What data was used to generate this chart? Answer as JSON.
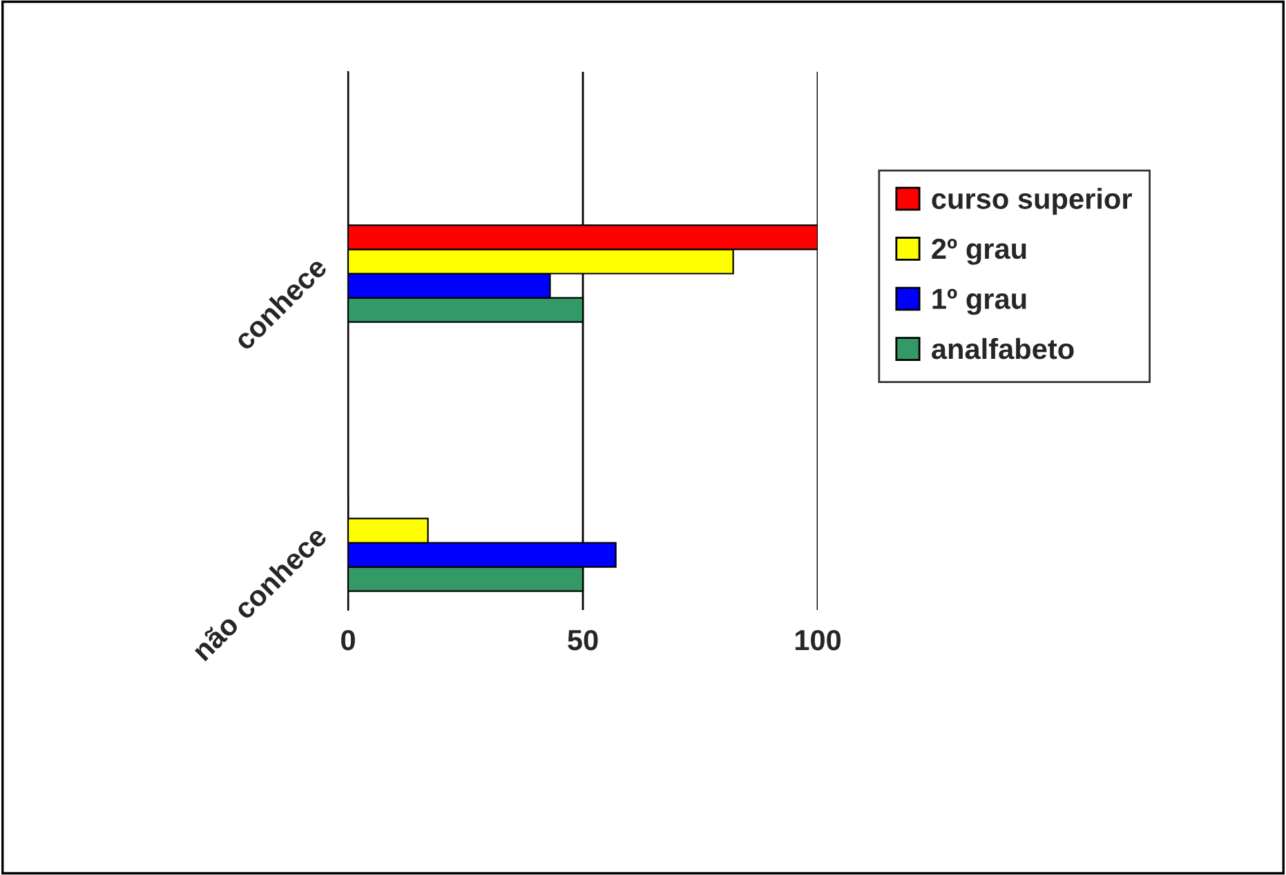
{
  "chart_data": {
    "type": "bar",
    "orientation": "horizontal",
    "categories": [
      null,
      "conhece",
      null,
      "não conhece"
    ],
    "series": [
      {
        "name": "analfabeto",
        "color": "#339966",
        "values": [
          null,
          50,
          null,
          50
        ]
      },
      {
        "name": "1º grau",
        "color": "#0000ff",
        "values": [
          null,
          43,
          null,
          57
        ]
      },
      {
        "name": "2º grau",
        "color": "#ffff00",
        "values": [
          null,
          82,
          null,
          17
        ]
      },
      {
        "name": "curso superior",
        "color": "#ff0000",
        "values": [
          null,
          100,
          null,
          0
        ]
      }
    ],
    "xlim": [
      0,
      100
    ],
    "xticks": [
      0,
      50,
      100
    ],
    "grid": "x",
    "legend": "right"
  }
}
